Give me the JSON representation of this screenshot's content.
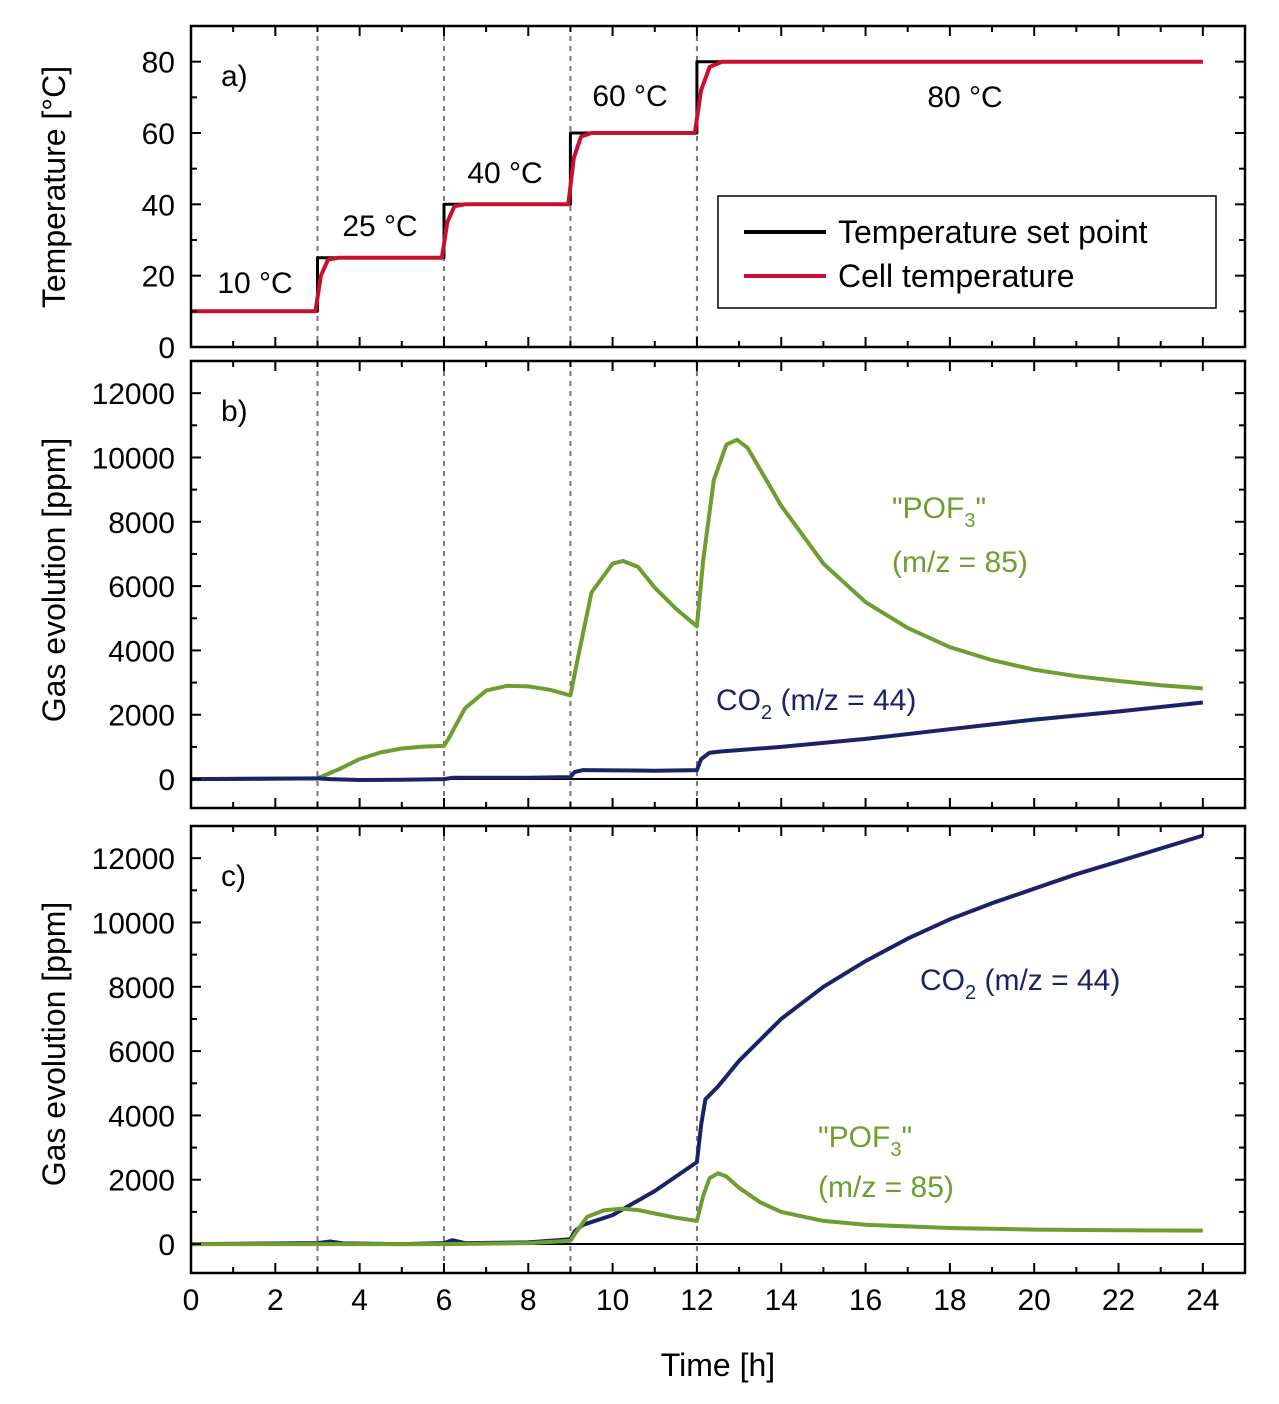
{
  "colors": {
    "black": "#000000",
    "red": "#c8102e",
    "green": "#6e9e2f",
    "navy": "#1a2366",
    "divider": "#777777"
  },
  "figure": {
    "xlabel": "Time [h]"
  },
  "chart_data": [
    {
      "type": "line",
      "panel_label": "a)",
      "ylabel": "Temperature [°C]",
      "xlim": [
        0,
        25
      ],
      "ylim": [
        0,
        90
      ],
      "xticks": [
        0,
        2,
        4,
        6,
        8,
        10,
        12,
        14,
        16,
        18,
        20,
        22,
        24
      ],
      "yticks": [
        0,
        20,
        40,
        60,
        80
      ],
      "vlines": [
        3,
        6,
        9,
        12
      ],
      "legend": {
        "position": "right",
        "entries": [
          "Temperature set point",
          "Cell temperature"
        ]
      },
      "step_labels": [
        "10 °C",
        "25 °C",
        "40 °C",
        "60 °C",
        "80 °C"
      ],
      "series": [
        {
          "name": "Temperature set point",
          "color": "#000000",
          "x": [
            0,
            3,
            3,
            6,
            6,
            9,
            9,
            12,
            12,
            24
          ],
          "y": [
            10,
            10,
            25,
            25,
            40,
            40,
            60,
            60,
            80,
            80
          ]
        },
        {
          "name": "Cell temperature",
          "color": "#c8102e",
          "x": [
            0,
            2.95,
            3.08,
            3.25,
            3.5,
            5.95,
            6.08,
            6.25,
            6.5,
            8.95,
            9.08,
            9.25,
            9.5,
            11.95,
            12.1,
            12.3,
            12.6,
            24
          ],
          "y": [
            10,
            10,
            20,
            24.5,
            25,
            25,
            35,
            39.5,
            40,
            40,
            53,
            59,
            60,
            60,
            72,
            78.5,
            80,
            80
          ]
        }
      ]
    },
    {
      "type": "line",
      "panel_label": "b)",
      "ylabel": "Gas evolution [ppm]",
      "xlim": [
        0,
        25
      ],
      "ylim": [
        -900,
        13000
      ],
      "xticks": [
        0,
        2,
        4,
        6,
        8,
        10,
        12,
        14,
        16,
        18,
        20,
        22,
        24
      ],
      "yticks": [
        0,
        2000,
        4000,
        6000,
        8000,
        10000,
        12000
      ],
      "vlines": [
        3,
        6,
        9,
        12
      ],
      "series": [
        {
          "name": "\"POF3\" (m/z = 85)",
          "color": "#6e9e2f",
          "x": [
            0,
            3,
            3.5,
            4,
            4.5,
            5,
            5.5,
            6,
            6.15,
            6.5,
            7,
            7.5,
            8,
            8.5,
            9,
            9.15,
            9.5,
            10,
            10.25,
            10.6,
            11,
            11.5,
            12,
            12.15,
            12.4,
            12.7,
            12.95,
            13.2,
            13.6,
            14,
            15,
            16,
            17,
            18,
            19,
            20,
            21,
            22,
            23,
            24
          ],
          "y": [
            0,
            20,
            300,
            620,
            830,
            950,
            1010,
            1030,
            1350,
            2200,
            2750,
            2900,
            2880,
            2780,
            2600,
            3600,
            5800,
            6700,
            6780,
            6600,
            5950,
            5300,
            4750,
            6800,
            9300,
            10400,
            10550,
            10300,
            9400,
            8500,
            6700,
            5500,
            4700,
            4100,
            3700,
            3400,
            3200,
            3050,
            2920,
            2820
          ]
        },
        {
          "name": "CO2 (m/z = 44)",
          "color": "#1a2366",
          "x": [
            0,
            3,
            3.3,
            4,
            5,
            6,
            6.2,
            8,
            9,
            9.1,
            9.3,
            11,
            12,
            12.1,
            12.3,
            12.6,
            14,
            16,
            18,
            20,
            22,
            24
          ],
          "y": [
            0,
            20,
            0,
            -30,
            -20,
            0,
            40,
            40,
            60,
            220,
            280,
            260,
            280,
            620,
            820,
            860,
            1000,
            1250,
            1550,
            1850,
            2100,
            2380
          ]
        }
      ],
      "annotations": [
        {
          "series": "\"POF3\" (m/z = 85)",
          "text_main": "\"POF",
          "sub": "3",
          "text_after": "\"",
          "line2": "(m/z = 85)"
        },
        {
          "series": "CO2 (m/z = 44)",
          "text_main": "CO",
          "sub": "2",
          "text_after": " (m/z = 44)"
        }
      ]
    },
    {
      "type": "line",
      "panel_label": "c)",
      "ylabel": "Gas evolution [ppm]",
      "xlim": [
        0,
        25
      ],
      "ylim": [
        -900,
        13000
      ],
      "xticks": [
        0,
        2,
        4,
        6,
        8,
        10,
        12,
        14,
        16,
        18,
        20,
        22,
        24
      ],
      "yticks": [
        0,
        2000,
        4000,
        6000,
        8000,
        10000,
        12000
      ],
      "vlines": [
        3,
        6,
        9,
        12
      ],
      "series": [
        {
          "name": "CO2 (m/z = 44)",
          "color": "#1a2366",
          "x": [
            0,
            3,
            3.3,
            3.6,
            5,
            6,
            6.2,
            6.5,
            8,
            9,
            9.1,
            9.3,
            10,
            11,
            12,
            12.1,
            12.2,
            12.5,
            13,
            14,
            15,
            16,
            17,
            18,
            19,
            20,
            21,
            22,
            23,
            24
          ],
          "y": [
            0,
            30,
            80,
            20,
            0,
            30,
            120,
            30,
            50,
            150,
            400,
            600,
            900,
            1650,
            2550,
            3700,
            4500,
            4900,
            5700,
            7000,
            8000,
            8800,
            9500,
            10100,
            10600,
            11050,
            11500,
            11900,
            12300,
            12700
          ]
        },
        {
          "name": "\"POF3\" (m/z = 85)",
          "color": "#6e9e2f",
          "x": [
            0,
            3,
            6,
            8,
            9,
            9.15,
            9.4,
            9.8,
            10.2,
            10.6,
            11,
            11.5,
            12,
            12.15,
            12.3,
            12.5,
            12.7,
            13,
            13.5,
            14,
            15,
            16,
            18,
            20,
            22,
            24
          ],
          "y": [
            0,
            0,
            0,
            30,
            100,
            400,
            850,
            1050,
            1100,
            1060,
            950,
            820,
            720,
            1500,
            2050,
            2200,
            2100,
            1750,
            1300,
            1000,
            720,
            600,
            500,
            450,
            430,
            420
          ]
        }
      ],
      "annotations": [
        {
          "series": "CO2 (m/z = 44)",
          "text_main": "CO",
          "sub": "2",
          "text_after": " (m/z = 44)"
        },
        {
          "series": "\"POF3\" (m/z = 85)",
          "text_main": "\"POF",
          "sub": "3",
          "text_after": "\"",
          "line2": "(m/z = 85)"
        }
      ]
    }
  ]
}
